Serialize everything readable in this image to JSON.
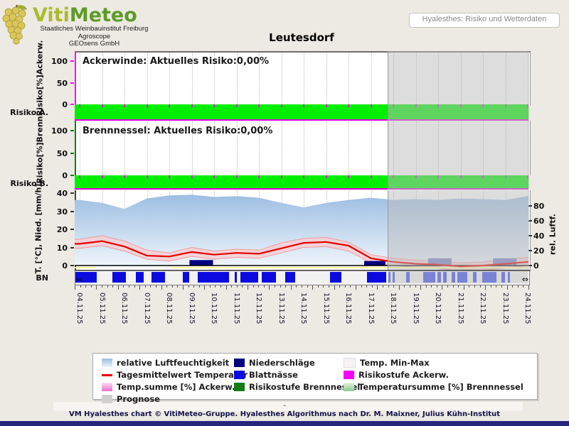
{
  "header": {
    "wordmark_part1": "Viti",
    "wordmark_part2": "Meteo",
    "org_lines": [
      "Staatliches Weinbauinstitut Freiburg",
      "Agroscope",
      "GEOsens GmbH"
    ],
    "page_link": "Hyalesthes: Risiko und Wetterdaten"
  },
  "title": "Leutesdorf",
  "panels": {
    "ackerwinde": {
      "inline_title": "Ackerwinde: Aktuelles Risiko:0,00%",
      "current_risk": "0,00%",
      "y_label": "Risiko[%]Ackerw.",
      "row_label": "Risiko A.",
      "y_ticks": [
        100,
        50,
        0
      ]
    },
    "brennnessel": {
      "inline_title": "Brennnessel: Aktuelles Risiko:0,00%",
      "current_risk": "0,00%",
      "y_label": "Risiko[%]Brenn.",
      "row_label": "Risiko B.",
      "y_ticks": [
        100,
        50,
        0
      ]
    },
    "weather": {
      "y_label_left": "T. [°C], Nied. [mm/h]",
      "y_label_right": "rel. Luftf.",
      "row_label": "BN",
      "y_ticks_left": [
        40,
        30,
        20,
        10,
        0
      ],
      "y_ticks_right": [
        80,
        60,
        40,
        20,
        0
      ]
    }
  },
  "chart_data": {
    "type": "line",
    "title": "Leutesdorf",
    "categories": [
      "04.11.25",
      "05.11.25",
      "06.11.25",
      "07.11.25",
      "08.11.25",
      "09.11.25",
      "10.11.25",
      "11.11.25",
      "12.11.25",
      "13.11.25",
      "14.11.25",
      "15.11.25",
      "16.11.25",
      "17.11.25",
      "18.11.25",
      "19.11.25",
      "20.11.25",
      "21.11.25",
      "22.11.25",
      "23.11.25",
      "24.11.25"
    ],
    "forecast_start_index": 14,
    "ylim_left": [
      0,
      40
    ],
    "ylim_right": [
      0,
      100
    ],
    "series": [
      {
        "name": "relative Luftfeuchtigkeit",
        "unit": "%",
        "axis": "right",
        "values": [
          88,
          84,
          76,
          90,
          94,
          95,
          92,
          93,
          91,
          84,
          78,
          84,
          88,
          91,
          88,
          89,
          88,
          90,
          89,
          88,
          93
        ]
      },
      {
        "name": "Tagesmittelwert Temperatur",
        "unit": "°C",
        "axis": "left",
        "values": [
          12,
          13.5,
          10.5,
          5.5,
          5,
          7.5,
          6,
          7,
          6.5,
          9.5,
          12.5,
          13,
          11,
          4,
          2,
          1,
          0.5,
          -0.5,
          0,
          1,
          2
        ]
      },
      {
        "name": "Temp. Max",
        "unit": "°C",
        "axis": "left",
        "values": [
          14.5,
          16.5,
          13.5,
          8.5,
          7,
          10,
          8,
          9,
          8.5,
          12.5,
          15,
          15.5,
          13,
          6,
          4,
          3,
          2.5,
          1.5,
          2,
          3.5,
          4.5
        ]
      },
      {
        "name": "Temp. Min",
        "unit": "°C",
        "axis": "left",
        "values": [
          9.5,
          11,
          8,
          3.5,
          2.5,
          5,
          3.5,
          4.5,
          4,
          7,
          10,
          10.5,
          8,
          1.5,
          0,
          -1,
          -1.5,
          -3,
          -2.5,
          -1.5,
          0
        ]
      },
      {
        "name": "Risikostufe Ackerw.",
        "unit": "%",
        "values": [
          0,
          0,
          0,
          0,
          0,
          0,
          0,
          0,
          0,
          0,
          0,
          0,
          0,
          0,
          0,
          0,
          0,
          0,
          0,
          0,
          0
        ]
      },
      {
        "name": "Risikostufe Brennnessel",
        "unit": "%",
        "values": [
          0,
          0,
          0,
          0,
          0,
          0,
          0,
          0,
          0,
          0,
          0,
          0,
          0,
          0,
          0,
          0,
          0,
          0,
          0,
          0,
          0
        ]
      }
    ],
    "precipitation_bars": [
      {
        "start_day": 4.9,
        "end_day": 5.95,
        "mm": 3,
        "forecast": false
      },
      {
        "start_day": 12.7,
        "end_day": 13.65,
        "mm": 2.5,
        "forecast": false
      },
      {
        "start_day": 15.55,
        "end_day": 16.6,
        "mm": 4,
        "forecast": true
      },
      {
        "start_day": 18.45,
        "end_day": 19.5,
        "mm": 4,
        "forecast": true
      }
    ],
    "leaf_wetness_segments": [
      [
        -0.2,
        0.8
      ],
      [
        1.5,
        2.1
      ],
      [
        2.55,
        2.9
      ],
      [
        3.25,
        3.85
      ],
      [
        4.65,
        4.95
      ],
      [
        5.3,
        6.7
      ],
      [
        6.95,
        7.05
      ],
      [
        7.2,
        8.0
      ],
      [
        8.15,
        8.8
      ],
      [
        9.2,
        9.65
      ],
      [
        11.2,
        11.7
      ],
      [
        12.85,
        13.7
      ],
      [
        13.8,
        13.9
      ],
      [
        14.0,
        14.1
      ],
      [
        14.6,
        14.75
      ],
      [
        15.35,
        15.9
      ],
      [
        16.0,
        16.15
      ],
      [
        16.25,
        16.4
      ],
      [
        16.65,
        16.8
      ],
      [
        16.9,
        17.35
      ],
      [
        17.6,
        17.75
      ],
      [
        18.0,
        18.65
      ],
      [
        18.85,
        19.0
      ],
      [
        19.15,
        19.25
      ]
    ]
  },
  "colors": {
    "risk_green": "#00EE00",
    "magenta": "#FF00FF",
    "precip_navy": "#00007E",
    "precip_forecast": "#7A83C6",
    "leaf_blue": "#0B0BE0",
    "leaf_forecast": "#7A83D6",
    "temp_red": "#E60000",
    "minmax_fill": "#F7CDD1",
    "minmax_edge": "#F09A9E",
    "humidity_top": "#9DBEE2",
    "humidity_bottom": "#EEF5FC",
    "yellow_line": "#FFFF9C",
    "prognose_gray": "#D8D8D8"
  },
  "legend": {
    "columns": [
      [
        {
          "swatch": "sw-hum",
          "label": "relative Luftfeuchtigkeit"
        },
        {
          "swatch": "sw-redline",
          "label": "Tagesmittelwert Temperatur"
        },
        {
          "swatch": "sw-pinksum",
          "label": "Temp.summe [%] Ackerw."
        },
        {
          "swatch": "sw-gray",
          "label": "Prognose"
        }
      ],
      [
        {
          "swatch": "sw-navy",
          "label": "Niederschläge"
        },
        {
          "swatch": "sw-blue",
          "label": "Blattnässe"
        },
        {
          "swatch": "sw-dgreen",
          "label": "Risikostufe Brennnessel"
        }
      ],
      [
        {
          "swatch": "sw-minmax",
          "label": "Temp. Min-Max"
        },
        {
          "swatch": "sw-magenta",
          "label": "Risikostufe Ackerw."
        },
        {
          "swatch": "sw-greensum",
          "label": "Temperatursumme [%] Brennnessel"
        }
      ]
    ]
  },
  "footer": {
    "dash": "-",
    "credit": "VM Hyalesthes chart © VitiMeteo-Gruppe. Hyalesthes Algorithmus nach Dr. M. Maixner, Julius Kühn-Institut"
  }
}
